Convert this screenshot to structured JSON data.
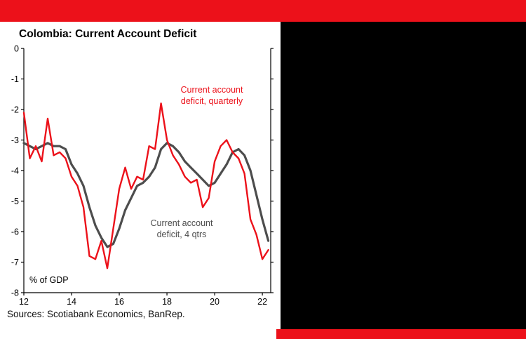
{
  "page": {
    "sources": "Sources: Scotiabank Economics, BanRep."
  },
  "colors": {
    "accent_red": "#ec111a",
    "panel_black": "#000000",
    "card_white": "#ffffff",
    "gray_line": "#4d4d4d"
  },
  "chart_data": {
    "type": "line",
    "title": "Colombia: Current Account Deficit",
    "unit_label": "% of GDP",
    "xlabel": "",
    "ylabel": "% of GDP",
    "xlim": [
      12,
      22.35
    ],
    "ylim": [
      -8,
      0
    ],
    "xticks": [
      12,
      14,
      16,
      18,
      20,
      22
    ],
    "yticks": [
      0,
      -1,
      -2,
      -3,
      -4,
      -5,
      -6,
      -7,
      -8
    ],
    "grid": false,
    "legend_position": "inline-annotations",
    "x_start": 12,
    "x_step": 0.25,
    "series": [
      {
        "name": "Current account deficit, 4 qtrs",
        "color": "#4d4d4d",
        "line_width": 3.2,
        "values": [
          -3.1,
          -3.2,
          -3.3,
          -3.2,
          -3.1,
          -3.2,
          -3.2,
          -3.3,
          -3.8,
          -4.1,
          -4.5,
          -5.2,
          -5.8,
          -6.2,
          -6.5,
          -6.4,
          -5.9,
          -5.3,
          -4.9,
          -4.5,
          -4.4,
          -4.2,
          -3.9,
          -3.3,
          -3.1,
          -3.2,
          -3.4,
          -3.7,
          -3.9,
          -4.1,
          -4.3,
          -4.5,
          -4.4,
          -4.1,
          -3.8,
          -3.4,
          -3.3,
          -3.5,
          -4.0,
          -4.8,
          -5.6,
          -6.3
        ]
      },
      {
        "name": "Current account deficit, quarterly",
        "color": "#ec111a",
        "line_width": 2.4,
        "values": [
          -2.1,
          -3.6,
          -3.2,
          -3.7,
          -2.3,
          -3.5,
          -3.4,
          -3.6,
          -4.2,
          -4.5,
          -5.2,
          -6.8,
          -6.9,
          -6.3,
          -7.2,
          -5.9,
          -4.6,
          -3.9,
          -4.6,
          -4.2,
          -4.3,
          -3.2,
          -3.3,
          -1.8,
          -3.0,
          -3.5,
          -3.8,
          -4.2,
          -4.4,
          -4.3,
          -5.2,
          -4.9,
          -3.7,
          -3.2,
          -3.0,
          -3.4,
          -3.6,
          -4.1,
          -5.6,
          -6.1,
          -6.9,
          -6.6
        ]
      }
    ],
    "annotations": [
      {
        "id": "quarterly",
        "text": "Current account\ndeficit, quarterly"
      },
      {
        "id": "4qtr",
        "text": "Current account\ndeficit, 4 qtrs"
      }
    ]
  }
}
